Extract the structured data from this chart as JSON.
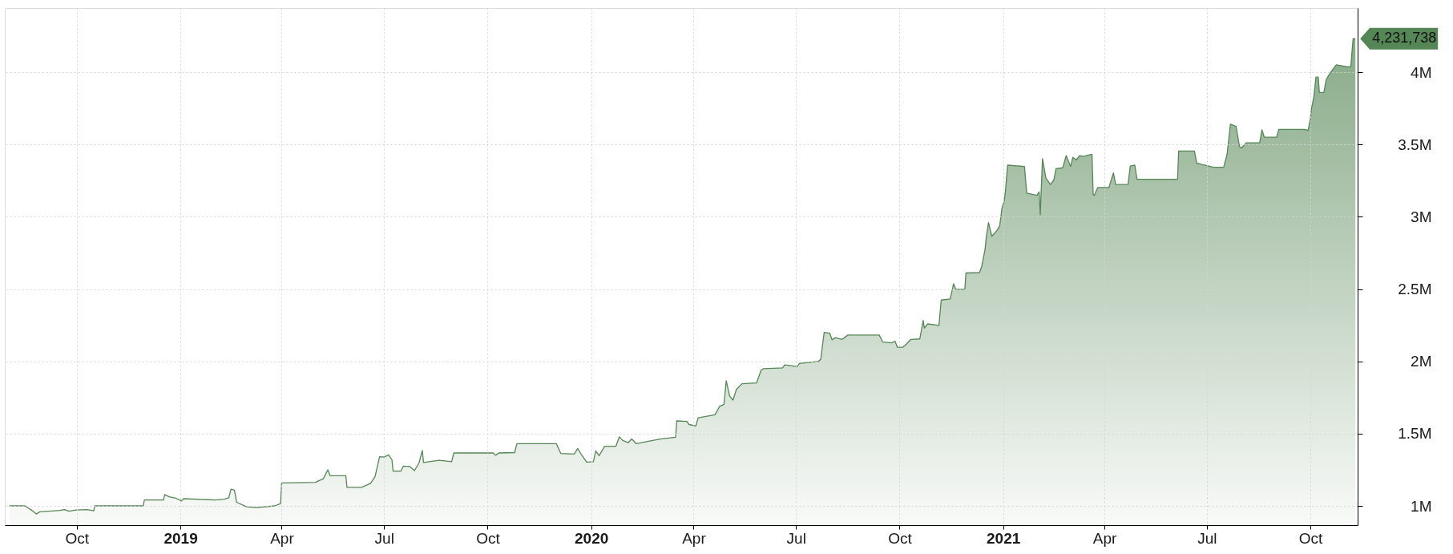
{
  "chart_data": {
    "type": "area",
    "x": [
      "2018-08-02",
      "2018-08-16",
      "2018-08-22",
      "2018-08-26",
      "2018-08-29",
      "2018-09-16",
      "2018-09-20",
      "2018-09-24",
      "2018-09-30",
      "2018-10-10",
      "2018-10-16",
      "2018-10-17",
      "2018-11-29",
      "2018-11-30",
      "2018-12-17",
      "2018-12-18",
      "2018-12-22",
      "2018-12-28",
      "2019-01-02",
      "2019-01-04",
      "2019-02-01",
      "2019-02-09",
      "2019-02-13",
      "2019-02-15",
      "2019-02-18",
      "2019-02-20",
      "2019-03-01",
      "2019-03-09",
      "2019-03-26",
      "2019-03-31",
      "2019-04-01",
      "2019-05-01",
      "2019-05-08",
      "2019-05-12",
      "2019-05-14",
      "2019-05-28",
      "2019-05-29",
      "2019-06-11",
      "2019-06-19",
      "2019-06-23",
      "2019-06-27",
      "2019-07-01",
      "2019-07-05",
      "2019-07-08",
      "2019-07-09",
      "2019-07-16",
      "2019-07-18",
      "2019-07-24",
      "2019-07-28",
      "2019-08-01",
      "2019-08-04",
      "2019-08-05",
      "2019-08-19",
      "2019-08-30",
      "2019-09-01",
      "2019-10-06",
      "2019-10-08",
      "2019-10-11",
      "2019-10-25",
      "2019-10-27",
      "2019-12-01",
      "2019-12-05",
      "2019-12-17",
      "2019-12-20",
      "2019-12-23",
      "2019-12-28",
      "2020-01-03",
      "2020-01-05",
      "2020-01-08",
      "2020-01-13",
      "2020-01-23",
      "2020-01-26",
      "2020-01-29",
      "2020-02-03",
      "2020-02-06",
      "2020-02-10",
      "2020-03-02",
      "2020-03-16",
      "2020-03-17",
      "2020-03-26",
      "2020-03-28",
      "2020-04-03",
      "2020-04-05",
      "2020-04-20",
      "2020-04-24",
      "2020-04-28",
      "2020-04-30",
      "2020-05-03",
      "2020-05-06",
      "2020-05-09",
      "2020-05-14",
      "2020-05-27",
      "2020-05-31",
      "2020-06-02",
      "2020-06-19",
      "2020-06-21",
      "2020-07-02",
      "2020-07-04",
      "2020-07-21",
      "2020-07-23",
      "2020-07-26",
      "2020-07-31",
      "2020-08-02",
      "2020-08-05",
      "2020-08-11",
      "2020-08-16",
      "2020-09-13",
      "2020-09-16",
      "2020-09-24",
      "2020-09-27",
      "2020-09-29",
      "2020-10-04",
      "2020-10-07",
      "2020-10-11",
      "2020-10-19",
      "2020-10-22",
      "2020-10-23",
      "2020-10-26",
      "2020-11-05",
      "2020-11-07",
      "2020-11-15",
      "2020-11-18",
      "2020-11-20",
      "2020-11-28",
      "2020-11-29",
      "2020-12-11",
      "2020-12-13",
      "2020-12-16",
      "2020-12-17",
      "2020-12-19",
      "2020-12-22",
      "2020-12-27",
      "2020-12-29",
      "2020-12-31",
      "2021-01-02",
      "2021-01-03",
      "2021-01-05",
      "2021-01-20",
      "2021-01-22",
      "2021-01-31",
      "2021-02-02",
      "2021-02-03",
      "2021-02-05",
      "2021-02-08",
      "2021-02-12",
      "2021-02-15",
      "2021-02-17",
      "2021-02-23",
      "2021-02-26",
      "2021-03-02",
      "2021-03-04",
      "2021-03-07",
      "2021-03-10",
      "2021-03-13",
      "2021-03-21",
      "2021-03-22",
      "2021-03-23",
      "2021-03-26",
      "2021-04-05",
      "2021-04-09",
      "2021-04-11",
      "2021-04-22",
      "2021-04-24",
      "2021-04-28",
      "2021-04-30",
      "2021-06-05",
      "2021-06-06",
      "2021-06-20",
      "2021-06-22",
      "2021-06-26",
      "2021-07-07",
      "2021-07-16",
      "2021-07-19",
      "2021-07-22",
      "2021-07-27",
      "2021-07-30",
      "2021-08-01",
      "2021-08-05",
      "2021-08-17",
      "2021-08-19",
      "2021-08-21",
      "2021-09-01",
      "2021-09-03",
      "2021-09-26",
      "2021-09-29",
      "2021-10-01",
      "2021-10-02",
      "2021-10-04",
      "2021-10-06",
      "2021-10-08",
      "2021-10-09",
      "2021-10-13",
      "2021-10-15",
      "2021-10-17",
      "2021-10-21",
      "2021-10-24",
      "2021-11-02",
      "2021-11-06",
      "2021-11-07",
      "2021-11-08",
      "2021-11-10"
    ],
    "series": [
      {
        "color": "#558655",
        "values": [
          1000000,
          1000000,
          969000,
          944000,
          959000,
          969000,
          975000,
          963000,
          972000,
          975000,
          966000,
          1000000,
          1000000,
          1041000,
          1041000,
          1078000,
          1063000,
          1053000,
          1034000,
          1050000,
          1041000,
          1047000,
          1056000,
          1116000,
          1109000,
          1025000,
          994000,
          988000,
          1000000,
          1016000,
          1159000,
          1163000,
          1188000,
          1250000,
          1209000,
          1209000,
          1128000,
          1128000,
          1156000,
          1203000,
          1341000,
          1338000,
          1353000,
          1319000,
          1241000,
          1241000,
          1275000,
          1272000,
          1244000,
          1297000,
          1384000,
          1300000,
          1316000,
          1306000,
          1366000,
          1366000,
          1350000,
          1366000,
          1369000,
          1431000,
          1431000,
          1363000,
          1359000,
          1397000,
          1359000,
          1303000,
          1306000,
          1381000,
          1347000,
          1413000,
          1413000,
          1478000,
          1453000,
          1438000,
          1463000,
          1431000,
          1463000,
          1475000,
          1588000,
          1584000,
          1563000,
          1553000,
          1609000,
          1630000,
          1687000,
          1702000,
          1866000,
          1761000,
          1732000,
          1806000,
          1845000,
          1851000,
          1940000,
          1949000,
          1955000,
          1976000,
          1964000,
          1985000,
          2000000,
          2015000,
          2200000,
          2194000,
          2149000,
          2164000,
          2152000,
          2182000,
          2182000,
          2134000,
          2128000,
          2140000,
          2098000,
          2098000,
          2119000,
          2152000,
          2155000,
          2283000,
          2230000,
          2259000,
          2248000,
          2424000,
          2432000,
          2537000,
          2498000,
          2498000,
          2611000,
          2614000,
          2656000,
          2775000,
          2856000,
          2960000,
          2865000,
          2910000,
          2939000,
          3059000,
          3109000,
          3172000,
          3357000,
          3348000,
          3163000,
          3148000,
          3172000,
          3014000,
          3402000,
          3268000,
          3223000,
          3253000,
          3333000,
          3339000,
          3423000,
          3348000,
          3411000,
          3393000,
          3423000,
          3417000,
          3432000,
          3154000,
          3148000,
          3202000,
          3202000,
          3303000,
          3223000,
          3223000,
          3351000,
          3357000,
          3259000,
          3259000,
          3455000,
          3455000,
          3372000,
          3363000,
          3342000,
          3342000,
          3432000,
          3640000,
          3625000,
          3485000,
          3476000,
          3512000,
          3512000,
          3602000,
          3551000,
          3551000,
          3605000,
          3605000,
          3598000,
          3676000,
          3750000,
          3824000,
          3966000,
          3966000,
          3860000,
          3860000,
          3946000,
          3975000,
          4020000,
          4051000,
          4039000,
          4039000,
          4142000,
          4232000,
          4231738
        ]
      }
    ],
    "xlim": [
      "2018-07-29",
      "2021-11-12"
    ],
    "xticks": [
      {
        "value": "2018-10",
        "label": "Oct"
      },
      {
        "value": "2019-01",
        "label": "2019"
      },
      {
        "value": "2019-04",
        "label": "Apr"
      },
      {
        "value": "2019-07",
        "label": "Jul"
      },
      {
        "value": "2019-10",
        "label": "Oct"
      },
      {
        "value": "2020-01",
        "label": "2020"
      },
      {
        "value": "2020-04",
        "label": "Apr"
      },
      {
        "value": "2020-07",
        "label": "Jul"
      },
      {
        "value": "2020-10",
        "label": "Oct"
      },
      {
        "value": "2021-01",
        "label": "2021"
      },
      {
        "value": "2021-04",
        "label": "Apr"
      },
      {
        "value": "2021-07",
        "label": "Jul"
      },
      {
        "value": "2021-10",
        "label": "Oct"
      }
    ],
    "ylim": [
      867000,
      4444000
    ],
    "yticks": [
      {
        "value": 1000000,
        "label": "1M"
      },
      {
        "value": 1500000,
        "label": "1.5M"
      },
      {
        "value": 2000000,
        "label": "2M"
      },
      {
        "value": 2500000,
        "label": "2.5M"
      },
      {
        "value": 3000000,
        "label": "3M"
      },
      {
        "value": 3500000,
        "label": "3.5M"
      },
      {
        "value": 4000000,
        "label": "4M"
      }
    ],
    "grid": true,
    "annotations": [
      {
        "text": "4,231,738",
        "x": "2021-11-10",
        "y": 4231738
      }
    ]
  }
}
